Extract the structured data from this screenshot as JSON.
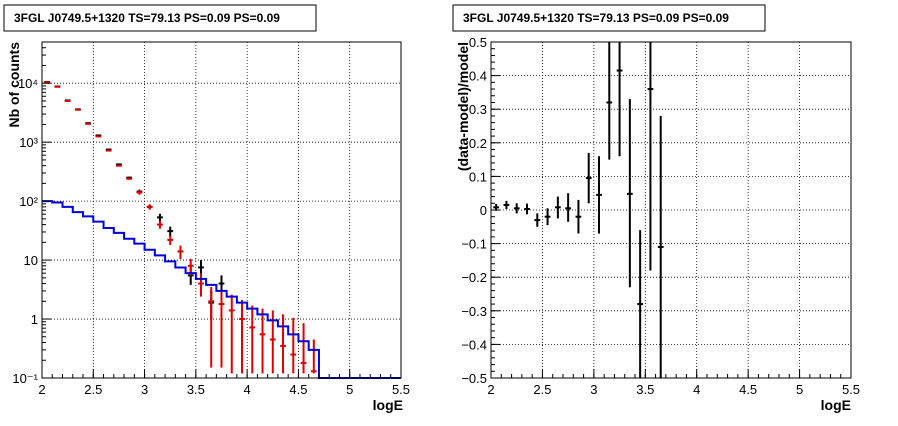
{
  "chart_data": [
    {
      "type": "scatter",
      "title": "3FGL J0749.5+1320 TS=79.13 PS=0.09 PS=0.09",
      "xlabel": "logE",
      "ylabel": "Nb of counts",
      "yscale": "log",
      "xlim": [
        2,
        5.5
      ],
      "ylim": [
        0.1,
        50000
      ],
      "grid": true,
      "xticks": [
        "2",
        "2.5",
        "3",
        "3.5",
        "4",
        "4.5",
        "5",
        "5.5"
      ],
      "ytick_values": [
        0.1,
        1,
        10,
        100,
        1000,
        10000
      ],
      "ytick_labels": [
        "10⁻¹",
        "1",
        "10",
        "10²",
        "10³",
        "10⁴"
      ],
      "series": [
        {
          "color": "#000000",
          "kind": "points",
          "x": [
            2.05,
            2.15,
            2.25,
            2.35,
            2.45,
            2.55,
            2.65,
            2.75,
            2.85,
            2.95,
            3.05,
            3.15,
            3.25,
            3.35,
            3.45,
            3.55,
            3.65,
            3.75
          ],
          "y": [
            10500,
            8800,
            5100,
            3600,
            2100,
            1300,
            750,
            420,
            250,
            145,
            80,
            53,
            31,
            14,
            5.5,
            7.5,
            1.9,
            4
          ],
          "ylo": [
            10400,
            8700,
            5000,
            3540,
            2060,
            1270,
            730,
            405,
            240,
            133,
            72,
            45,
            25,
            10.5,
            3.8,
            5.3,
            1.0,
            2.5
          ],
          "yhi": [
            10600,
            8900,
            5200,
            3660,
            2140,
            1330,
            770,
            435,
            260,
            157,
            88,
            61,
            37,
            17.5,
            7.5,
            10,
            3.0,
            5.5
          ]
        },
        {
          "color": "#dd0000",
          "kind": "points",
          "x": [
            2.05,
            2.15,
            2.25,
            2.35,
            2.45,
            2.55,
            2.65,
            2.75,
            2.85,
            2.95,
            3.05,
            3.15,
            3.25,
            3.35,
            3.45,
            3.55,
            3.65,
            3.75,
            3.85,
            3.95,
            4.05,
            4.15,
            4.25,
            4.35,
            4.45,
            4.55,
            4.65
          ],
          "y": [
            10400,
            8700,
            5000,
            3550,
            2050,
            1250,
            720,
            400,
            240,
            140,
            80,
            40,
            22,
            14,
            8,
            4,
            2,
            1.8,
            1.4,
            1,
            0.72,
            0.55,
            0.45,
            0.35,
            0.25,
            0.18,
            0.13
          ],
          "ylo": [
            10300,
            8600,
            4930,
            3490,
            2000,
            1220,
            700,
            385,
            230,
            128,
            72,
            34,
            18,
            10.5,
            5.5,
            2.4,
            0.15,
            0.15,
            0.12,
            0.12,
            0.12,
            0.12,
            0.12,
            0.12,
            0.12,
            0.12,
            0.12
          ],
          "yhi": [
            10500,
            8800,
            5070,
            3610,
            2100,
            1280,
            740,
            415,
            250,
            152,
            88,
            46,
            26,
            17.5,
            10.5,
            6,
            3.5,
            3,
            2.6,
            2.1,
            1.7,
            1.5,
            1.4,
            1.2,
            1.05,
            0.85,
            0.45
          ]
        },
        {
          "color": "#0000dd",
          "kind": "step",
          "edges": [
            2.0,
            2.1,
            2.2,
            2.3,
            2.4,
            2.5,
            2.6,
            2.7,
            2.8,
            2.9,
            3.0,
            3.1,
            3.2,
            3.3,
            3.4,
            3.5,
            3.6,
            3.7,
            3.8,
            3.9,
            4.0,
            4.1,
            4.2,
            4.3,
            4.4,
            4.5,
            4.6,
            4.7,
            4.8,
            4.9,
            5.0,
            5.1,
            5.2,
            5.3,
            5.4,
            5.5
          ],
          "values": [
            100,
            95,
            80,
            65,
            55,
            45,
            35,
            29,
            23,
            19,
            15,
            12,
            9.5,
            7.5,
            6,
            4.8,
            3.8,
            3,
            2.4,
            1.9,
            1.5,
            1.2,
            0.95,
            0.75,
            0.55,
            0.42,
            0.3,
            0.1,
            0.1,
            0.1,
            0.1,
            0.1,
            0.1,
            0.1,
            0.1
          ]
        }
      ]
    },
    {
      "type": "scatter",
      "title": "3FGL J0749.5+1320 TS=79.13 PS=0.09 PS=0.09",
      "xlabel": "logE",
      "ylabel": "(data-model)/model",
      "yscale": "linear",
      "xlim": [
        2,
        5.5
      ],
      "ylim": [
        -0.5,
        0.5
      ],
      "grid": true,
      "xticks": [
        "2",
        "2.5",
        "3",
        "3.5",
        "4",
        "4.5",
        "5",
        "5.5"
      ],
      "ytick_values": [
        -0.5,
        -0.4,
        -0.3,
        -0.2,
        -0.1,
        0,
        0.1,
        0.2,
        0.3,
        0.4,
        0.5
      ],
      "ytick_labels": [
        "−0.5",
        "−0.4",
        "−0.3",
        "−0.2",
        "−0.1",
        "0",
        "0.1",
        "0.2",
        "0.3",
        "0.4",
        "0.5"
      ],
      "series": [
        {
          "color": "#000000",
          "kind": "points",
          "x": [
            2.05,
            2.15,
            2.25,
            2.35,
            2.45,
            2.55,
            2.65,
            2.75,
            2.85,
            2.95,
            3.05,
            3.15,
            3.25,
            3.35,
            3.45,
            3.55,
            3.65
          ],
          "y": [
            0.008,
            0.015,
            0.005,
            0.003,
            -0.03,
            -0.02,
            0.008,
            0.005,
            -0.02,
            0.095,
            0.045,
            0.32,
            0.415,
            0.048,
            -0.28,
            0.36,
            -0.11
          ],
          "ylo": [
            -0.002,
            0.003,
            -0.01,
            -0.013,
            -0.05,
            -0.045,
            -0.025,
            -0.035,
            -0.07,
            0.02,
            -0.07,
            0.15,
            0.16,
            -0.23,
            -0.5,
            -0.18,
            -0.5
          ],
          "yhi": [
            0.018,
            0.027,
            0.02,
            0.019,
            -0.01,
            0.005,
            0.04,
            0.05,
            0.03,
            0.17,
            0.16,
            0.5,
            0.5,
            0.33,
            -0.06,
            0.5,
            0.28
          ]
        }
      ]
    }
  ]
}
